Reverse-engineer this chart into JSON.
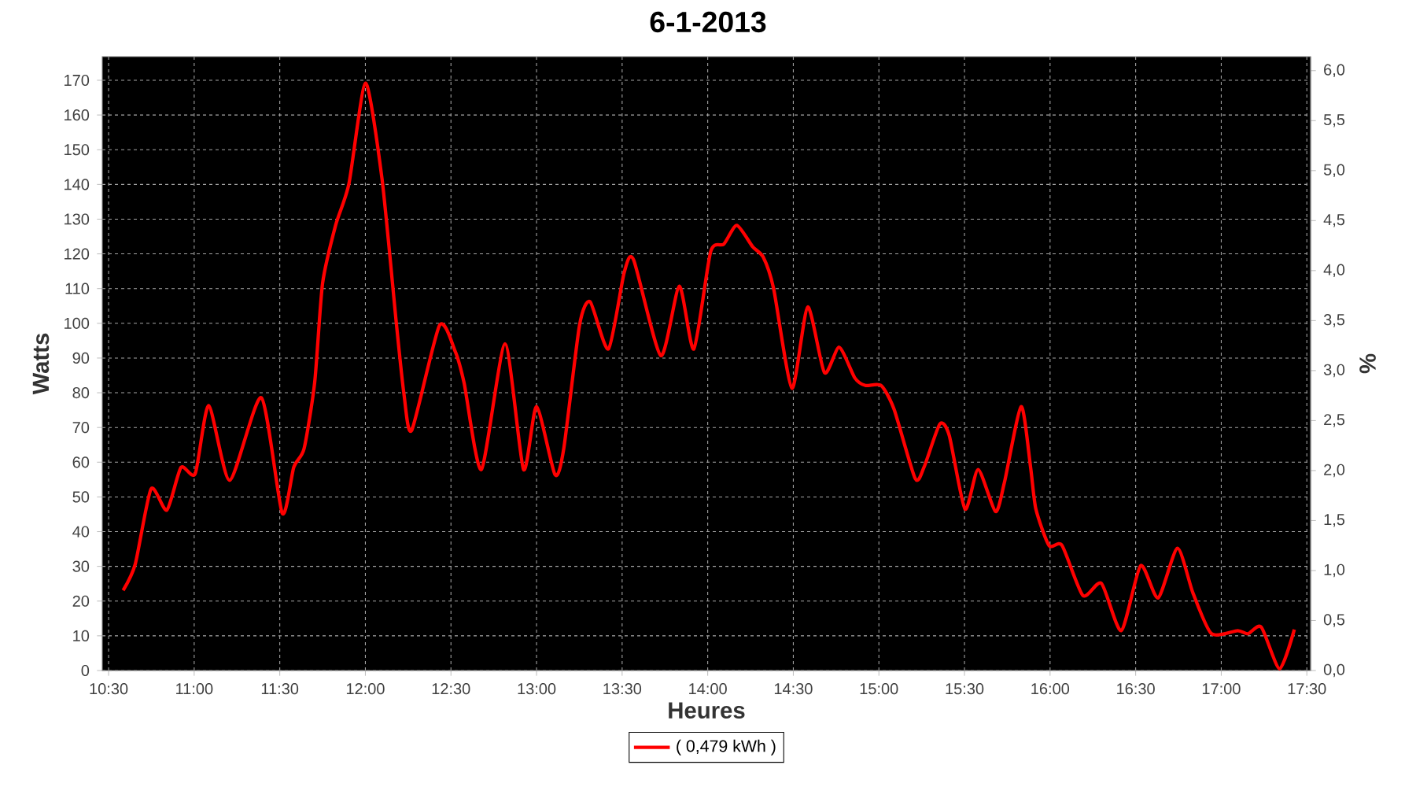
{
  "chart_data": {
    "type": "line",
    "title": "6-1-2013",
    "xlabel": "Heures",
    "ylabel": "Watts",
    "y2label": "%",
    "xlim": [
      10.463,
      17.522
    ],
    "ylim": [
      0,
      176.8
    ],
    "y2lim": [
      0,
      6.14
    ],
    "xticks": [
      {
        "value": 10.5,
        "label": "10:30"
      },
      {
        "value": 11,
        "label": "11:00"
      },
      {
        "value": 11.5,
        "label": "11:30"
      },
      {
        "value": 12,
        "label": "12:00"
      },
      {
        "value": 12.5,
        "label": "12:30"
      },
      {
        "value": 13,
        "label": "13:00"
      },
      {
        "value": 13.5,
        "label": "13:30"
      },
      {
        "value": 14,
        "label": "14:00"
      },
      {
        "value": 14.5,
        "label": "14:30"
      },
      {
        "value": 15,
        "label": "15:00"
      },
      {
        "value": 15.5,
        "label": "15:30"
      },
      {
        "value": 16,
        "label": "16:00"
      },
      {
        "value": 16.5,
        "label": "16:30"
      },
      {
        "value": 17,
        "label": "17:00"
      },
      {
        "value": 17.5,
        "label": "17:30"
      }
    ],
    "yticks": [
      0,
      10,
      20,
      30,
      40,
      50,
      60,
      70,
      80,
      90,
      100,
      110,
      120,
      130,
      140,
      150,
      160,
      170
    ],
    "y2ticks": [
      {
        "value": 0,
        "label": "0,0"
      },
      {
        "value": 0.5,
        "label": "0,5"
      },
      {
        "value": 1,
        "label": "1,0"
      },
      {
        "value": 1.5,
        "label": "1,5"
      },
      {
        "value": 2,
        "label": "2,0"
      },
      {
        "value": 2.5,
        "label": "2,5"
      },
      {
        "value": 3,
        "label": "3,0"
      },
      {
        "value": 3.5,
        "label": "3,5"
      },
      {
        "value": 4,
        "label": "4,0"
      },
      {
        "value": 4.5,
        "label": "4,5"
      },
      {
        "value": 5,
        "label": "5,0"
      },
      {
        "value": 5.5,
        "label": "5,5"
      },
      {
        "value": 6,
        "label": "6,0"
      }
    ],
    "grid": true,
    "legend": "bottom",
    "line_style": "solid",
    "series": [
      {
        "name": "( 0,479 kWh )",
        "color": "#ff0000",
        "x": [
          10.585,
          10.656,
          10.748,
          10.84,
          10.923,
          11.006,
          11.085,
          11.208,
          11.392,
          11.514,
          11.582,
          11.642,
          11.704,
          11.75,
          11.826,
          11.904,
          12.001,
          12.097,
          12.179,
          12.225,
          12.271,
          12.433,
          12.525,
          12.577,
          12.678,
          12.816,
          12.924,
          13.0,
          13.108,
          13.159,
          13.251,
          13.313,
          13.42,
          13.512,
          13.567,
          13.726,
          13.834,
          13.919,
          14.017,
          14.094,
          14.17,
          14.262,
          14.324,
          14.385,
          14.492,
          14.584,
          14.682,
          14.768,
          14.859,
          14.921,
          15.013,
          15.089,
          15.212,
          15.264,
          15.356,
          15.411,
          15.503,
          15.58,
          15.681,
          15.733,
          15.831,
          15.886,
          15.917,
          15.994,
          16.07,
          16.192,
          16.3,
          16.416,
          16.529,
          16.631,
          16.744,
          16.835,
          16.943,
          17.096,
          17.157,
          17.234,
          17.341,
          17.427
        ],
        "values": [
          23.1,
          30.7,
          52.3,
          46.2,
          58.5,
          56.7,
          76.3,
          54.8,
          78.6,
          45.3,
          58.6,
          63.9,
          83,
          111.5,
          128.2,
          140.2,
          169.2,
          141.7,
          101,
          79.8,
          69.2,
          99.4,
          91.9,
          82.8,
          57.9,
          94.1,
          57.9,
          76,
          56.4,
          63.9,
          99.4,
          106.2,
          92.6,
          114.6,
          118.3,
          90.7,
          110.7,
          92.6,
          120.6,
          122.8,
          128.2,
          122.1,
          119.1,
          110,
          81.3,
          104.7,
          85.8,
          93.1,
          84.3,
          82.1,
          82.1,
          75.2,
          55.3,
          58.6,
          71,
          67.7,
          46.5,
          57.9,
          45.8,
          54.1,
          76,
          58.6,
          46.5,
          36,
          36,
          21.6,
          25.1,
          11.5,
          30.2,
          20.9,
          35.2,
          22.3,
          10.6,
          11.5,
          10.6,
          12.5,
          0.5,
          11.8
        ]
      }
    ]
  }
}
